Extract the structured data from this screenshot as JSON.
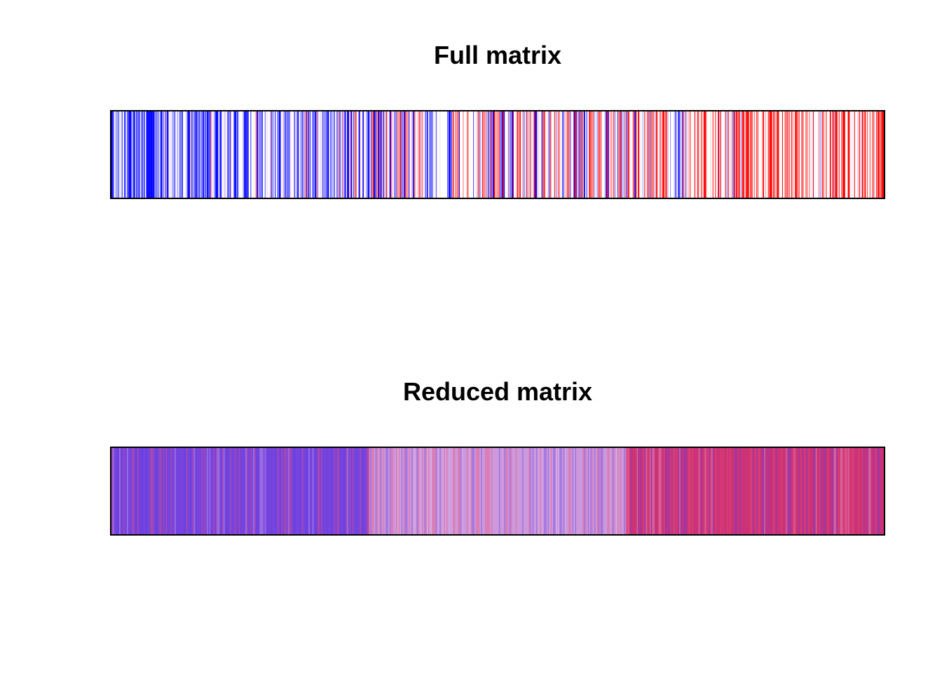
{
  "chart_data": [
    {
      "type": "heatmap",
      "title": "Full matrix",
      "xlabel": "",
      "ylabel": "",
      "n_columns": 600,
      "value_range": [
        -1,
        1
      ],
      "colors": {
        "low": "#0000ff",
        "mid": "#ffffff",
        "high": "#ff0000"
      },
      "groups": [
        {
          "start": 0,
          "end": 200,
          "trend": "mostly blue"
        },
        {
          "start": 200,
          "end": 400,
          "trend": "mixed, many white"
        },
        {
          "start": 400,
          "end": 600,
          "trend": "mostly red"
        }
      ],
      "axes_shown": false,
      "grid": false
    },
    {
      "type": "heatmap",
      "title": "Reduced matrix",
      "xlabel": "",
      "ylabel": "",
      "n_columns": 600,
      "value_range": [
        -1,
        1
      ],
      "colors": {
        "low": "#0000ff",
        "mid": "#ffffff",
        "high": "#ff0000"
      },
      "alpha": 0.5,
      "groups": [
        {
          "start": 0,
          "end": 200,
          "mean_color": "#7744dd"
        },
        {
          "start": 200,
          "end": 400,
          "mean_color": "#cc99dd"
        },
        {
          "start": 400,
          "end": 600,
          "mean_color": "#cc3377"
        }
      ],
      "axes_shown": false,
      "grid": false
    }
  ]
}
